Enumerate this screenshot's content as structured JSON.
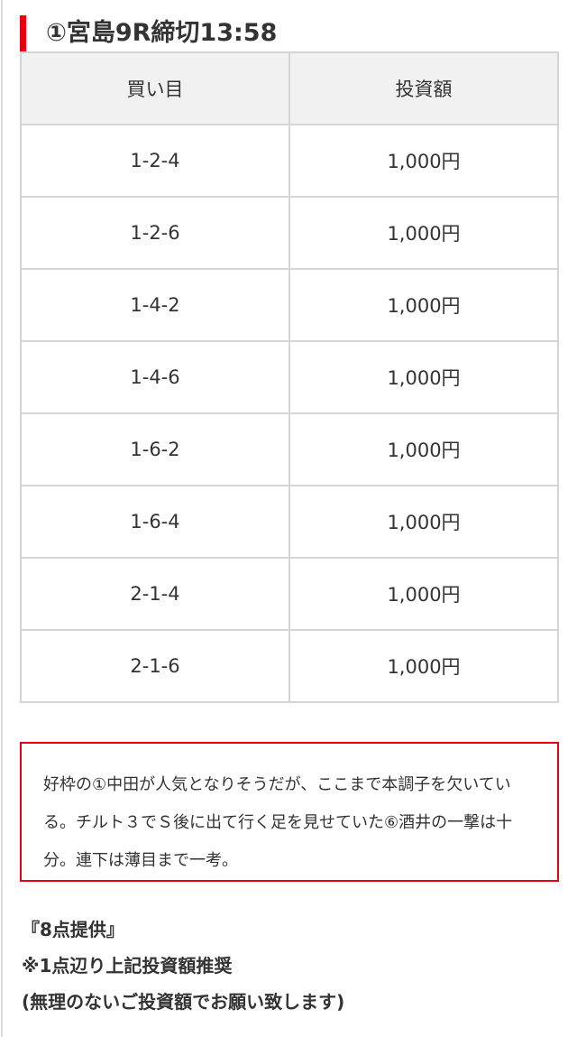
{
  "title": "①宮島9R締切13:58",
  "table": {
    "headers": [
      "買い目",
      "投資額"
    ],
    "rows": [
      [
        "1-2-4",
        "1,000円"
      ],
      [
        "1-2-6",
        "1,000円"
      ],
      [
        "1-4-2",
        "1,000円"
      ],
      [
        "1-4-6",
        "1,000円"
      ],
      [
        "1-6-2",
        "1,000円"
      ],
      [
        "1-6-4",
        "1,000円"
      ],
      [
        "2-1-4",
        "1,000円"
      ],
      [
        "2-1-6",
        "1,000円"
      ]
    ]
  },
  "comment": "好枠の①中田が人気となりそうだが、ここまで本調子を欠いている。チルト３でＳ後に出て行く足を見せていた⑥酒井の一撃は十分。連下は薄目まで一考。",
  "footer": {
    "line1": "『8点提供』",
    "line2": "※1点辺り上記投資額推奨",
    "line3": "(無理のないご投資額でお願い致します)"
  },
  "colors": {
    "accent": "#e60012",
    "header_bg": "#f1f1f1",
    "border": "#d5d5d5"
  }
}
